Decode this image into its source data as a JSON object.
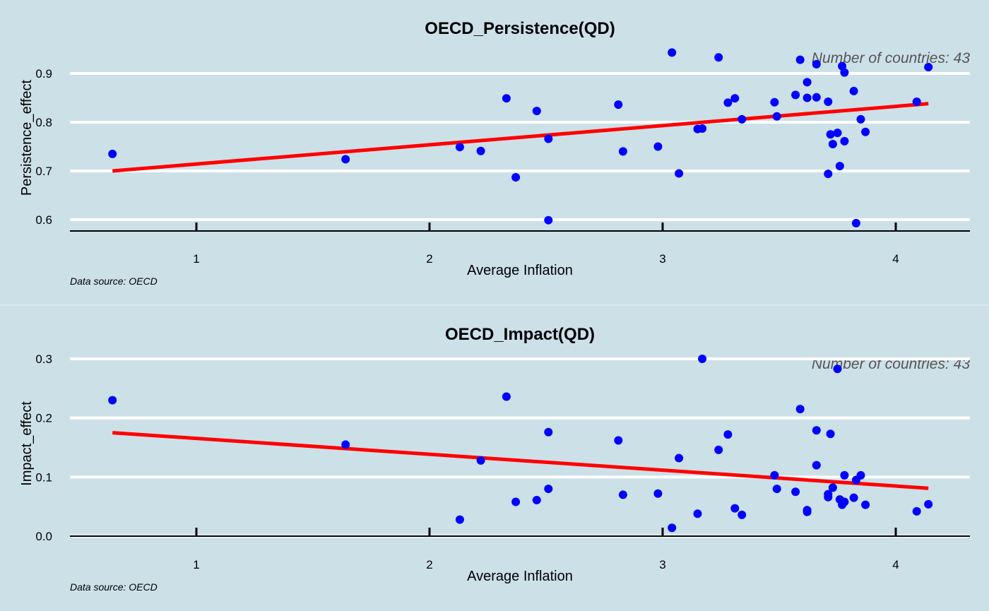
{
  "colors": {
    "background": "#cce0e8",
    "gridline": "#ffffff",
    "point": "#0000ff",
    "trendline": "#ff0000",
    "annotation": "#555555"
  },
  "chart_data": [
    {
      "type": "scatter",
      "title": "OECD_Persistence(QD)",
      "xlabel": "Average Inflation",
      "ylabel": "Persistence_effect",
      "annotation": "Number of countries: 43",
      "caption": "Data source: OECD",
      "xlim": [
        0.46,
        4.32
      ],
      "ylim": [
        0.575,
        0.955
      ],
      "xticks": [
        1,
        2,
        3,
        4
      ],
      "yticks": [
        0.6,
        0.7,
        0.8,
        0.9
      ],
      "ytick_labels": [
        "0.6",
        "0.7",
        "0.8",
        "0.9"
      ],
      "grid": true,
      "trendline": {
        "x": [
          0.64,
          4.14
        ],
        "y": [
          0.7,
          0.838
        ]
      },
      "points": [
        [
          0.64,
          0.735
        ],
        [
          1.64,
          0.724
        ],
        [
          2.13,
          0.749
        ],
        [
          2.22,
          0.741
        ],
        [
          2.33,
          0.849
        ],
        [
          2.37,
          0.687
        ],
        [
          2.46,
          0.823
        ],
        [
          2.51,
          0.766
        ],
        [
          2.51,
          0.599
        ],
        [
          2.81,
          0.836
        ],
        [
          2.83,
          0.74
        ],
        [
          2.98,
          0.75
        ],
        [
          3.04,
          0.943
        ],
        [
          3.07,
          0.695
        ],
        [
          3.15,
          0.786
        ],
        [
          3.17,
          0.787
        ],
        [
          3.24,
          0.933
        ],
        [
          3.28,
          0.84
        ],
        [
          3.31,
          0.849
        ],
        [
          3.34,
          0.806
        ],
        [
          3.48,
          0.841
        ],
        [
          3.49,
          0.812
        ],
        [
          3.57,
          0.856
        ],
        [
          3.59,
          0.928
        ],
        [
          3.62,
          0.85
        ],
        [
          3.62,
          0.882
        ],
        [
          3.66,
          0.919
        ],
        [
          3.66,
          0.851
        ],
        [
          3.71,
          0.842
        ],
        [
          3.71,
          0.694
        ],
        [
          3.72,
          0.775
        ],
        [
          3.73,
          0.755
        ],
        [
          3.75,
          0.778
        ],
        [
          3.76,
          0.71
        ],
        [
          3.77,
          0.915
        ],
        [
          3.78,
          0.761
        ],
        [
          3.78,
          0.902
        ],
        [
          3.82,
          0.864
        ],
        [
          3.83,
          0.593
        ],
        [
          3.85,
          0.806
        ],
        [
          3.87,
          0.78
        ],
        [
          4.09,
          0.842
        ],
        [
          4.14,
          0.913
        ]
      ]
    },
    {
      "type": "scatter",
      "title": "OECD_Impact(QD)",
      "xlabel": "Average Inflation",
      "ylabel": "Impact_effect",
      "annotation": "Number of countries: 43",
      "caption": "Data source: OECD",
      "xlim": [
        0.46,
        4.32
      ],
      "ylim": [
        0.0,
        0.3
      ],
      "xticks": [
        1,
        2,
        3,
        4
      ],
      "yticks": [
        0.0,
        0.1,
        0.2,
        0.3
      ],
      "ytick_labels": [
        "0.0",
        "0.1",
        "0.2",
        "0.3"
      ],
      "grid": true,
      "trendline": {
        "x": [
          0.64,
          4.14
        ],
        "y": [
          0.175,
          0.081
        ]
      },
      "points": [
        [
          0.64,
          0.23
        ],
        [
          1.64,
          0.155
        ],
        [
          2.13,
          0.028
        ],
        [
          2.22,
          0.128
        ],
        [
          2.33,
          0.236
        ],
        [
          2.37,
          0.058
        ],
        [
          2.46,
          0.061
        ],
        [
          2.51,
          0.176
        ],
        [
          2.51,
          0.08
        ],
        [
          2.81,
          0.162
        ],
        [
          2.83,
          0.07
        ],
        [
          2.98,
          0.072
        ],
        [
          3.04,
          0.014
        ],
        [
          3.07,
          0.132
        ],
        [
          3.15,
          0.038
        ],
        [
          3.17,
          0.3
        ],
        [
          3.24,
          0.146
        ],
        [
          3.28,
          0.172
        ],
        [
          3.31,
          0.047
        ],
        [
          3.34,
          0.036
        ],
        [
          3.48,
          0.103
        ],
        [
          3.49,
          0.08
        ],
        [
          3.57,
          0.075
        ],
        [
          3.59,
          0.215
        ],
        [
          3.62,
          0.044
        ],
        [
          3.62,
          0.041
        ],
        [
          3.66,
          0.12
        ],
        [
          3.66,
          0.179
        ],
        [
          3.71,
          0.066
        ],
        [
          3.71,
          0.071
        ],
        [
          3.72,
          0.173
        ],
        [
          3.73,
          0.082
        ],
        [
          3.75,
          0.283
        ],
        [
          3.76,
          0.062
        ],
        [
          3.77,
          0.053
        ],
        [
          3.78,
          0.103
        ],
        [
          3.78,
          0.058
        ],
        [
          3.82,
          0.065
        ],
        [
          3.83,
          0.095
        ],
        [
          3.85,
          0.103
        ],
        [
          3.87,
          0.053
        ],
        [
          4.09,
          0.042
        ],
        [
          4.14,
          0.054
        ]
      ]
    }
  ]
}
